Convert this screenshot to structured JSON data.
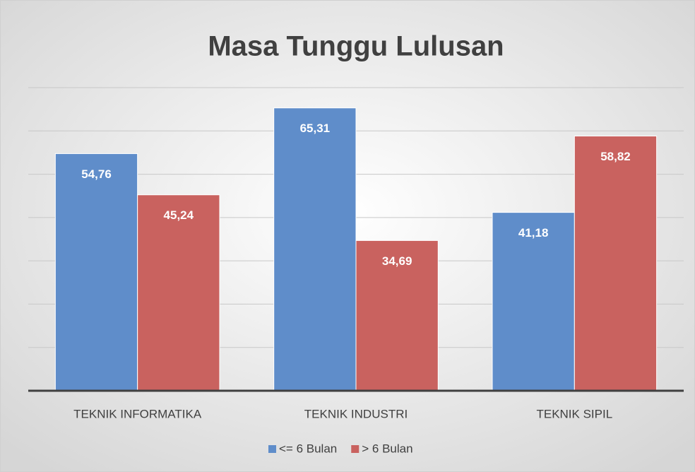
{
  "chart_data": {
    "type": "bar",
    "title": "Masa Tunggu Lulusan",
    "categories": [
      "TEKNIK INFORMATIKA",
      "TEKNIK INDUSTRI",
      "TEKNIK SIPIL"
    ],
    "series": [
      {
        "name": "<= 6 Bulan",
        "color": "#5f8dca",
        "values": [
          54.76,
          65.31,
          41.18
        ],
        "value_labels": [
          "54,76",
          "65,31",
          "41,18"
        ]
      },
      {
        "name": "> 6 Bulan",
        "color": "#c9625f",
        "values": [
          45.24,
          34.69,
          58.82
        ],
        "value_labels": [
          "45,24",
          "34,69",
          "58,82"
        ]
      }
    ],
    "ylim": [
      0,
      70
    ],
    "yticks": [
      0,
      10,
      20,
      30,
      40,
      50,
      60,
      70
    ],
    "grid": true,
    "legend": "bottom"
  }
}
